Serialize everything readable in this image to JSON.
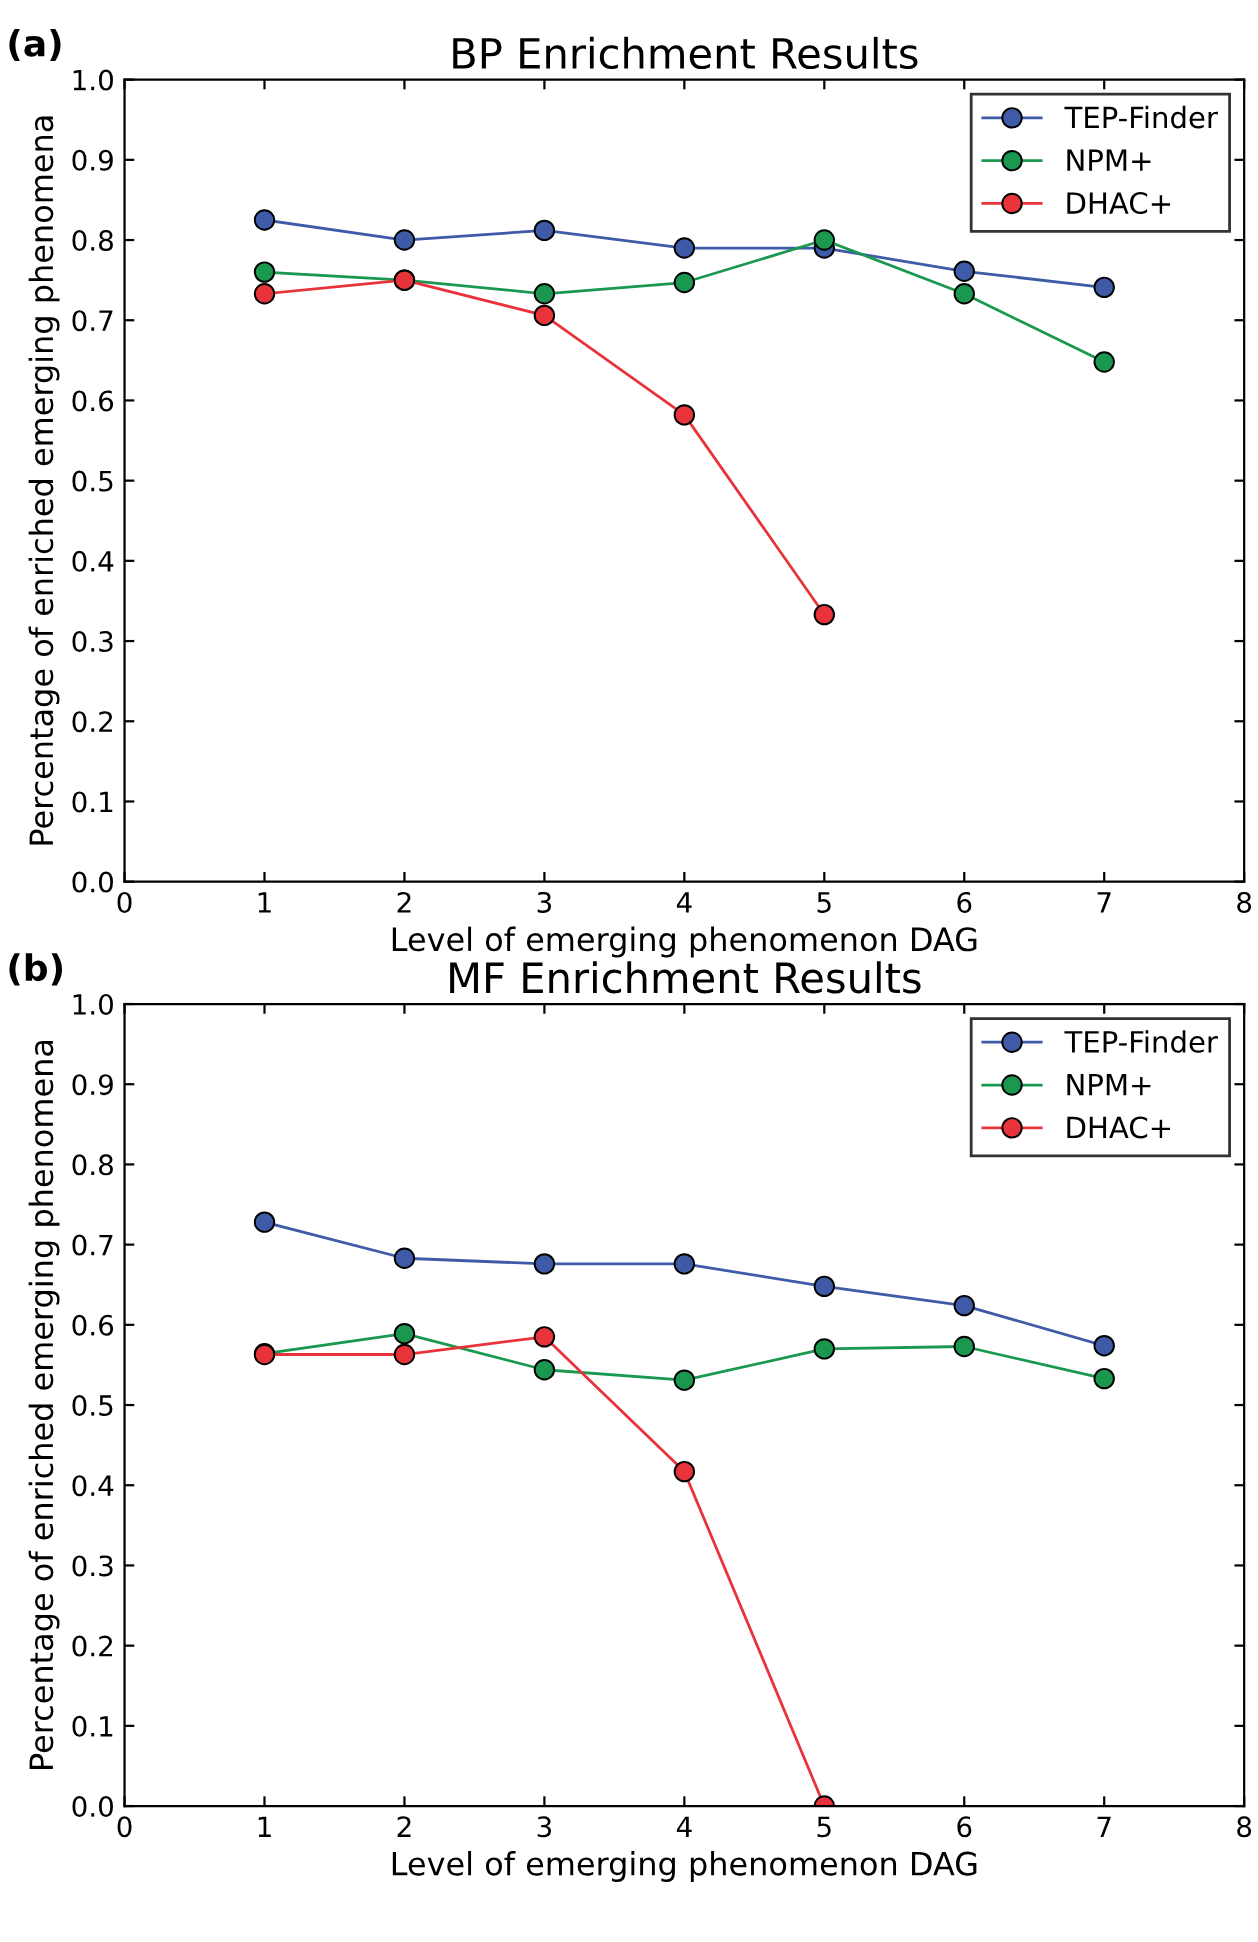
{
  "chart_data": [
    {
      "type": "line",
      "title": "BP Enrichment Results",
      "xlabel": "Level of emerging phenomenon DAG",
      "ylabel": "Percentage of enriched emerging phenomena",
      "annotations": [
        "(a)"
      ],
      "xlim": [
        0,
        8
      ],
      "xticks": [
        0,
        1,
        2,
        3,
        4,
        5,
        6,
        7,
        8
      ],
      "ylim": [
        0,
        1.0
      ],
      "yticks": [
        {
          "value": 0,
          "label": "0.0"
        },
        {
          "value": 0.1,
          "label": "0.1"
        },
        {
          "value": 0.2,
          "label": "0.2"
        },
        {
          "value": 0.3,
          "label": "0.3"
        },
        {
          "value": 0.4,
          "label": "0.4"
        },
        {
          "value": 0.5,
          "label": "0.5"
        },
        {
          "value": 0.6,
          "label": "0.6"
        },
        {
          "value": 0.7,
          "label": "0.7"
        },
        {
          "value": 0.8,
          "label": "0.8"
        },
        {
          "value": 0.9,
          "label": "0.9"
        },
        {
          "value": 1.0,
          "label": "1.0"
        }
      ],
      "grid": false,
      "legend": "top right",
      "marker": "circle",
      "line_style": "solid",
      "series": [
        {
          "name": "TEP-Finder",
          "color": "#3f5ba8",
          "x": [
            1,
            2,
            3,
            4,
            5,
            6,
            7
          ],
          "values": [
            0.825,
            0.8,
            0.812,
            0.79,
            0.79,
            0.761,
            0.741
          ]
        },
        {
          "name": "NPM+",
          "color": "#1a9850",
          "x": [
            1,
            2,
            3,
            4,
            5,
            6,
            7
          ],
          "values": [
            0.76,
            0.75,
            0.733,
            0.747,
            0.8,
            0.733,
            0.648
          ]
        },
        {
          "name": "DHAC+",
          "color": "#e8333a",
          "x": [
            1,
            2,
            3,
            4,
            5
          ],
          "values": [
            0.733,
            0.75,
            0.706,
            0.582,
            0.333
          ]
        }
      ]
    },
    {
      "type": "line",
      "title": "MF Enrichment Results",
      "xlabel": "Level of emerging phenomenon DAG",
      "ylabel": "Percentage of enriched emerging phenomena",
      "annotations": [
        "(b)"
      ],
      "xlim": [
        0,
        8
      ],
      "xticks": [
        0,
        1,
        2,
        3,
        4,
        5,
        6,
        7,
        8
      ],
      "ylim": [
        0,
        1.0
      ],
      "yticks": [
        {
          "value": 0,
          "label": "0.0"
        },
        {
          "value": 0.1,
          "label": "0.1"
        },
        {
          "value": 0.2,
          "label": "0.2"
        },
        {
          "value": 0.3,
          "label": "0.3"
        },
        {
          "value": 0.4,
          "label": "0.4"
        },
        {
          "value": 0.5,
          "label": "0.5"
        },
        {
          "value": 0.6,
          "label": "0.6"
        },
        {
          "value": 0.7,
          "label": "0.7"
        },
        {
          "value": 0.8,
          "label": "0.8"
        },
        {
          "value": 0.9,
          "label": "0.9"
        },
        {
          "value": 1.0,
          "label": "1.0"
        }
      ],
      "grid": false,
      "legend": "top right",
      "marker": "circle",
      "line_style": "solid",
      "series": [
        {
          "name": "TEP-Finder",
          "color": "#3f5ba8",
          "x": [
            1,
            2,
            3,
            4,
            5,
            6,
            7
          ],
          "values": [
            0.728,
            0.683,
            0.676,
            0.676,
            0.648,
            0.624,
            0.574
          ]
        },
        {
          "name": "NPM+",
          "color": "#1a9850",
          "x": [
            1,
            2,
            3,
            4,
            5,
            6,
            7
          ],
          "values": [
            0.564,
            0.589,
            0.544,
            0.531,
            0.57,
            0.573,
            0.533
          ]
        },
        {
          "name": "DHAC+",
          "color": "#e8333a",
          "x": [
            1,
            2,
            3,
            4,
            5
          ],
          "values": [
            0.563,
            0.563,
            0.585,
            0.417,
            0.0
          ]
        }
      ]
    }
  ]
}
